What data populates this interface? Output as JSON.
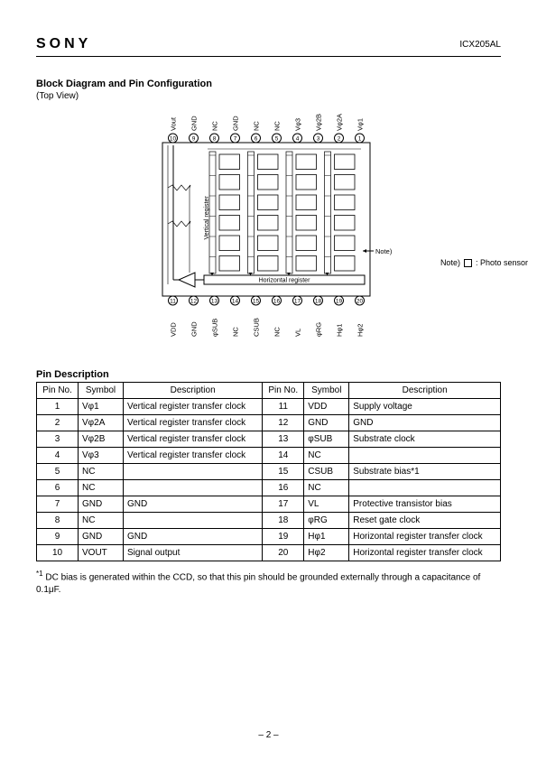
{
  "header": {
    "brand": "SONY",
    "part": "ICX205AL"
  },
  "section1": {
    "title": "Block Diagram and Pin Configuration",
    "subtitle": "(Top View)"
  },
  "legend": {
    "note_word": "Note)",
    "label": ": Photo sensor"
  },
  "diagram": {
    "top_pins": [
      {
        "n": "10",
        "label": "Vout"
      },
      {
        "n": "9",
        "label": "GND"
      },
      {
        "n": "8",
        "label": "NC"
      },
      {
        "n": "7",
        "label": "GND"
      },
      {
        "n": "6",
        "label": "NC"
      },
      {
        "n": "5",
        "label": "NC"
      },
      {
        "n": "4",
        "label": "Vφ3"
      },
      {
        "n": "3",
        "label": "Vφ2B"
      },
      {
        "n": "2",
        "label": "Vφ2A"
      },
      {
        "n": "1",
        "label": "Vφ1"
      }
    ],
    "bottom_pins": [
      {
        "n": "11",
        "label": "VDD"
      },
      {
        "n": "12",
        "label": "GND"
      },
      {
        "n": "13",
        "label": "φSUB"
      },
      {
        "n": "14",
        "label": "NC"
      },
      {
        "n": "15",
        "label": "CSUB"
      },
      {
        "n": "16",
        "label": "NC"
      },
      {
        "n": "17",
        "label": "VL"
      },
      {
        "n": "18",
        "label": "φRG"
      },
      {
        "n": "19",
        "label": "Hφ1"
      },
      {
        "n": "20",
        "label": "Hφ2"
      }
    ],
    "vreg_label": "Vertical register",
    "hreg_label": "Horizontal register",
    "note_arrow": "Note)"
  },
  "section2": {
    "title": "Pin Description"
  },
  "table": {
    "headers": [
      "Pin No.",
      "Symbol",
      "Description",
      "Pin No.",
      "Symbol",
      "Description"
    ],
    "rows": [
      [
        "1",
        "Vφ1",
        "Vertical register transfer clock",
        "11",
        "VDD",
        "Supply voltage"
      ],
      [
        "2",
        "Vφ2A",
        "Vertical register transfer clock",
        "12",
        "GND",
        "GND"
      ],
      [
        "3",
        "Vφ2B",
        "Vertical register transfer clock",
        "13",
        "φSUB",
        "Substrate clock"
      ],
      [
        "4",
        "Vφ3",
        "Vertical register transfer clock",
        "14",
        "NC",
        ""
      ],
      [
        "5",
        "NC",
        "",
        "15",
        "CSUB",
        "Substrate bias*1"
      ],
      [
        "6",
        "NC",
        "",
        "16",
        "NC",
        ""
      ],
      [
        "7",
        "GND",
        "GND",
        "17",
        "VL",
        "Protective transistor bias"
      ],
      [
        "8",
        "NC",
        "",
        "18",
        "φRG",
        "Reset gate clock"
      ],
      [
        "9",
        "GND",
        "GND",
        "19",
        "Hφ1",
        "Horizontal register transfer clock"
      ],
      [
        "10",
        "VOUT",
        "Signal output",
        "20",
        "Hφ2",
        "Horizontal register transfer clock"
      ]
    ]
  },
  "footnote": {
    "marker": "*1",
    "text": "DC bias is generated within the CCD, so that this pin should be grounded externally through a capacitance of 0.1μF."
  },
  "page": "– 2 –",
  "style": {
    "colors": {
      "bg": "#ffffff",
      "line": "#000000"
    },
    "pin_circle_r": 5,
    "chip_w": 230,
    "chip_h": 170,
    "col_count": 4,
    "row_count": 6
  }
}
